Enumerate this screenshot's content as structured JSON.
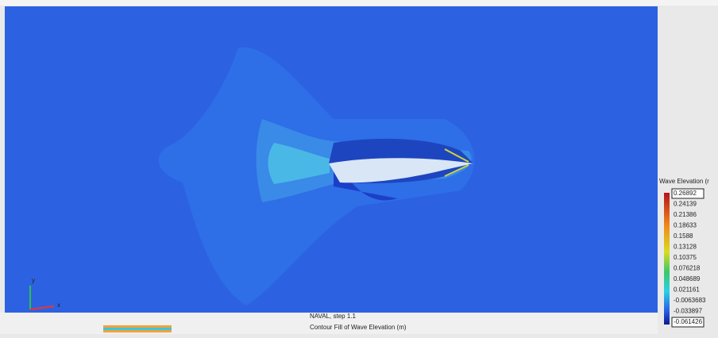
{
  "viewport": {
    "axis_y": "y",
    "axis_x": "x"
  },
  "legend": {
    "title": "Wave Elevation (r",
    "labels": [
      "0.26892",
      "0.24139",
      "0.21386",
      "0.18633",
      "0.1588",
      "0.13128",
      "0.10375",
      "0.076218",
      "0.048689",
      "0.021161",
      "-0.0063683",
      "-0.033897",
      "-0.061426"
    ]
  },
  "footer": {
    "step": "NAVAL, step 1.1",
    "caption": "Contour Fill of Wave Elevation (m)"
  }
}
